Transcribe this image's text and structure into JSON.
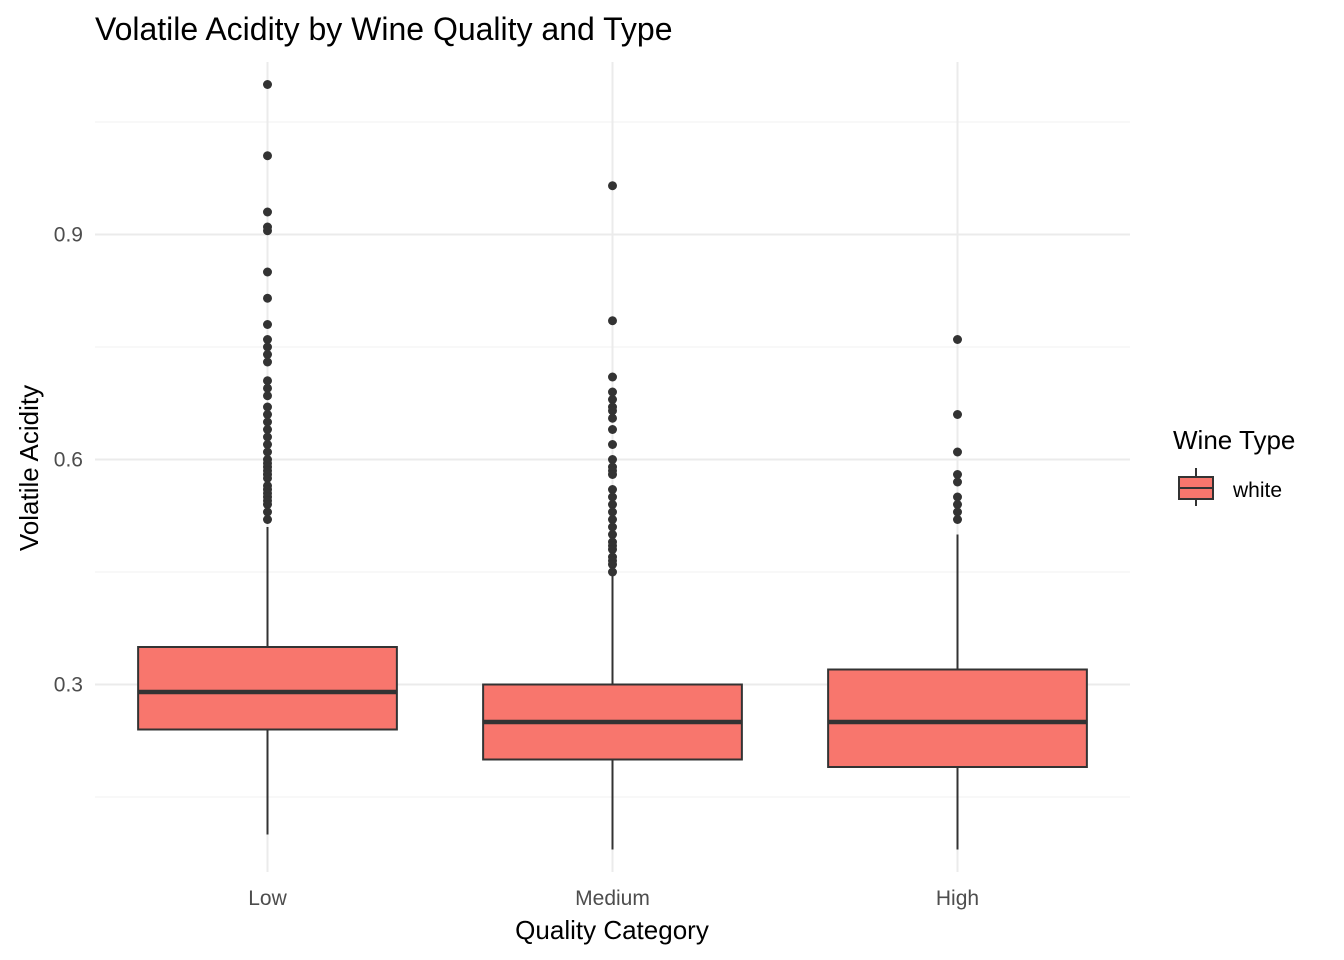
{
  "chart_data": {
    "type": "box",
    "title": "Volatile Acidity by Wine Quality and Type",
    "xlabel": "Quality Category",
    "ylabel": "Volatile Acidity",
    "categories": [
      "Low",
      "Medium",
      "High"
    ],
    "ylim": [
      0.05,
      1.13
    ],
    "yticks": [
      0.3,
      0.6,
      0.9
    ],
    "yticks_minor": [
      0.15,
      0.45,
      0.75,
      1.05
    ],
    "grid": true,
    "legend": {
      "title": "Wine Type",
      "position": "right",
      "entries": [
        "white"
      ]
    },
    "series": [
      {
        "name": "white",
        "color": "#F8766D",
        "boxes": [
          {
            "category": "Low",
            "min": 0.1,
            "q1": 0.24,
            "median": 0.29,
            "q3": 0.35,
            "max": 0.51,
            "outliers": [
              1.1,
              1.005,
              0.93,
              0.91,
              0.905,
              0.85,
              0.815,
              0.78,
              0.76,
              0.75,
              0.74,
              0.73,
              0.705,
              0.695,
              0.685,
              0.67,
              0.66,
              0.65,
              0.64,
              0.63,
              0.62,
              0.61,
              0.6,
              0.595,
              0.59,
              0.585,
              0.58,
              0.575,
              0.565,
              0.56,
              0.555,
              0.55,
              0.545,
              0.54,
              0.53,
              0.52
            ]
          },
          {
            "category": "Medium",
            "min": 0.08,
            "q1": 0.2,
            "median": 0.25,
            "q3": 0.3,
            "max": 0.445,
            "outliers": [
              0.965,
              0.785,
              0.71,
              0.69,
              0.68,
              0.67,
              0.665,
              0.655,
              0.64,
              0.62,
              0.6,
              0.59,
              0.585,
              0.58,
              0.56,
              0.55,
              0.54,
              0.53,
              0.52,
              0.51,
              0.5,
              0.49,
              0.485,
              0.48,
              0.47,
              0.465,
              0.46,
              0.45
            ]
          },
          {
            "category": "High",
            "min": 0.08,
            "q1": 0.19,
            "median": 0.25,
            "q3": 0.32,
            "max": 0.5,
            "outliers": [
              0.76,
              0.66,
              0.61,
              0.58,
              0.57,
              0.55,
              0.54,
              0.53,
              0.52
            ]
          }
        ]
      }
    ]
  }
}
